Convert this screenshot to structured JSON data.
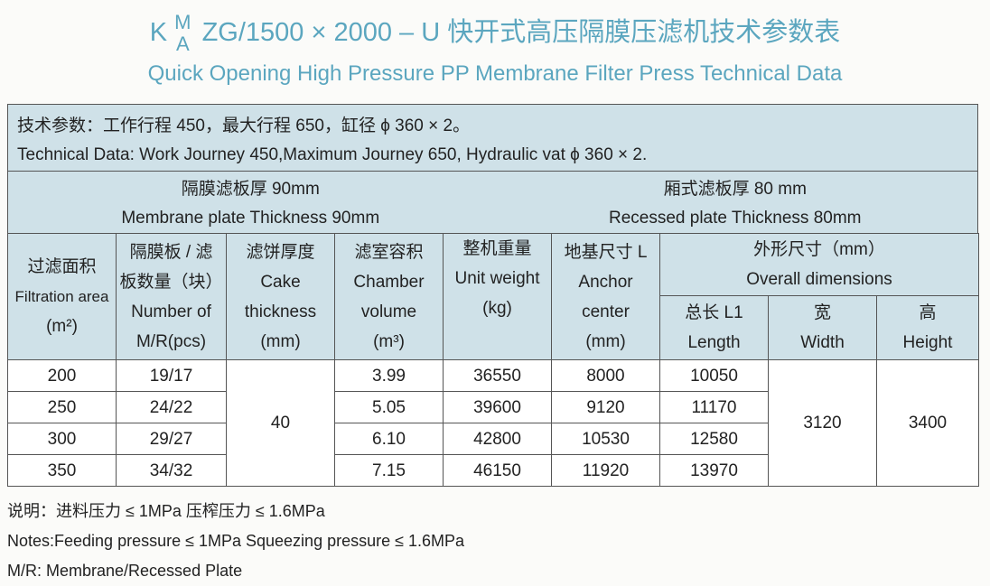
{
  "title": {
    "k": "K",
    "m": "M",
    "a": "A",
    "rest": "ZG/1500 × 2000 – U 快开式高压隔膜压滤机技术参数表",
    "subtitle": "Quick Opening High Pressure PP Membrane Filter Press Technical Data"
  },
  "tech": {
    "cn": "技术参数：工作行程 450，最大行程 650，缸径 ϕ 360 × 2。",
    "en": "Technical Data: Work Journey 450,Maximum Journey 650, Hydraulic vat ϕ 360 × 2."
  },
  "plates": {
    "membrane_cn": "隔膜滤板厚 90mm",
    "membrane_en": "Membrane plate Thickness 90mm",
    "recessed_cn": "厢式滤板厚 80 mm",
    "recessed_en": "Recessed plate Thickness 80mm"
  },
  "headers": {
    "area": [
      "过滤面积",
      "Filtration area",
      "(m²)"
    ],
    "plates": [
      "隔膜板 / 滤",
      "板数量（块）",
      "Number of",
      "M/R(pcs)"
    ],
    "cake": [
      "滤饼厚度",
      "Cake",
      "thickness",
      "(mm)"
    ],
    "chamber": [
      "滤室容积",
      "Chamber",
      "volume",
      "(m³)"
    ],
    "weight": [
      "整机重量",
      "Unit weight",
      "(kg)"
    ],
    "anchor": [
      "地基尺寸 L",
      "Anchor",
      "center",
      "(mm)"
    ],
    "overall": [
      "外形尺寸（mm）",
      "Overall dimensions"
    ],
    "length": [
      "总长 L1",
      "Length"
    ],
    "width": [
      "宽",
      "Width"
    ],
    "height": [
      "高",
      "Height"
    ]
  },
  "rows": [
    {
      "area": "200",
      "plates": "19/17",
      "chamber": "3.99",
      "weight": "36550",
      "anchor": "8000",
      "length": "10050"
    },
    {
      "area": "250",
      "plates": "24/22",
      "chamber": "5.05",
      "weight": "39600",
      "anchor": "9120",
      "length": "11170"
    },
    {
      "area": "300",
      "plates": "29/27",
      "chamber": "6.10",
      "weight": "42800",
      "anchor": "10530",
      "length": "12580"
    },
    {
      "area": "350",
      "plates": "34/32",
      "chamber": "7.15",
      "weight": "46150",
      "anchor": "11920",
      "length": "13970"
    }
  ],
  "shared": {
    "cake": "40",
    "width": "3120",
    "height": "3400"
  },
  "notes": [
    "说明：进料压力 ≤ 1MPa   压榨压力 ≤ 1.6MPa",
    "Notes:Feeding pressure ≤ 1MPa   Squeezing pressure ≤ 1.6MPa",
    "M/R: Membrane/Recessed Plate"
  ]
}
